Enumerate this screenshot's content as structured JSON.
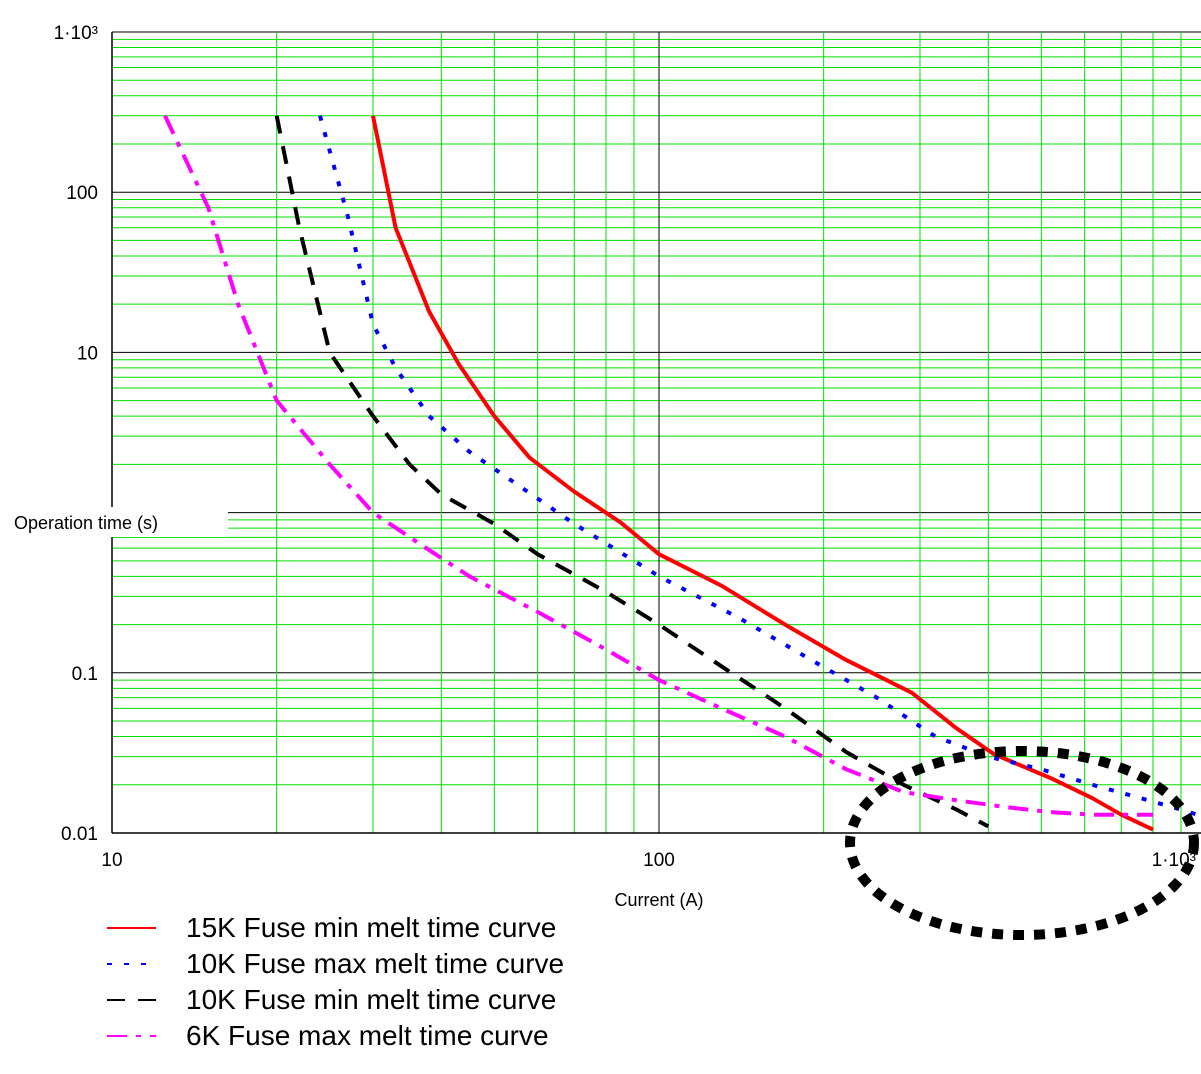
{
  "chart_data": {
    "type": "line",
    "x_scale": "log",
    "y_scale": "log",
    "xlim": [
      10,
      1000
    ],
    "ylim": [
      0.01,
      1000
    ],
    "xlabel": "Current (A)",
    "ylabel": "Operation time (s)",
    "x_ticks": [
      {
        "value": 10,
        "label": "10"
      },
      {
        "value": 100,
        "label": "100"
      },
      {
        "value": 1000,
        "label": "1·10³"
      }
    ],
    "y_ticks": [
      {
        "value": 0.01,
        "label": "0.01"
      },
      {
        "value": 0.1,
        "label": "0.1"
      },
      {
        "value": 10,
        "label": "10"
      },
      {
        "value": 100,
        "label": "100"
      },
      {
        "value": 1000,
        "label": "1·10³"
      }
    ],
    "grid": true,
    "legend_position": "bottom-left",
    "series": [
      {
        "name": "15K Fuse min melt time curve",
        "color": "#ff0000",
        "style": "solid",
        "x": [
          30,
          33,
          38,
          43,
          50,
          58,
          70,
          85,
          100,
          130,
          170,
          220,
          290,
          350,
          410,
          520,
          620,
          700,
          800
        ],
        "y": [
          300,
          60,
          18,
          8.5,
          4.0,
          2.2,
          1.35,
          0.87,
          0.55,
          0.35,
          0.2,
          0.12,
          0.075,
          0.045,
          0.031,
          0.022,
          0.0165,
          0.013,
          0.0105
        ]
      },
      {
        "name": "10K Fuse max melt time curve",
        "color": "#0000ff",
        "style": "dotted",
        "x": [
          24,
          27,
          30,
          33,
          38,
          45,
          55,
          70,
          90,
          100,
          140,
          190,
          250,
          320,
          400,
          500,
          620,
          760,
          900,
          1000
        ],
        "y": [
          300,
          70,
          15,
          8,
          4,
          2.4,
          1.5,
          0.85,
          0.5,
          0.4,
          0.22,
          0.12,
          0.07,
          0.04,
          0.03,
          0.025,
          0.02,
          0.0165,
          0.014,
          0.0125
        ]
      },
      {
        "name": "10K Fuse min melt time curve",
        "color": "#000000",
        "style": "dashed",
        "x": [
          20,
          22,
          25,
          30,
          35,
          40,
          50,
          60,
          80,
          100,
          130,
          170,
          220,
          280,
          350,
          400
        ],
        "y": [
          300,
          60,
          10,
          4,
          2.0,
          1.3,
          0.85,
          0.55,
          0.32,
          0.2,
          0.11,
          0.06,
          0.032,
          0.02,
          0.014,
          0.011
        ]
      },
      {
        "name": "6K Fuse max melt time curve",
        "color": "#ff00ff",
        "style": "dashdot",
        "x": [
          12.5,
          15,
          17,
          20,
          25,
          30,
          37,
          45,
          60,
          80,
          100,
          130,
          170,
          220,
          280,
          350,
          430,
          520,
          620,
          700,
          800
        ],
        "y": [
          300,
          80,
          20,
          5,
          2.0,
          1.0,
          0.62,
          0.4,
          0.24,
          0.14,
          0.09,
          0.06,
          0.04,
          0.025,
          0.018,
          0.016,
          0.0145,
          0.0135,
          0.013,
          0.013,
          0.013
        ]
      }
    ]
  }
}
